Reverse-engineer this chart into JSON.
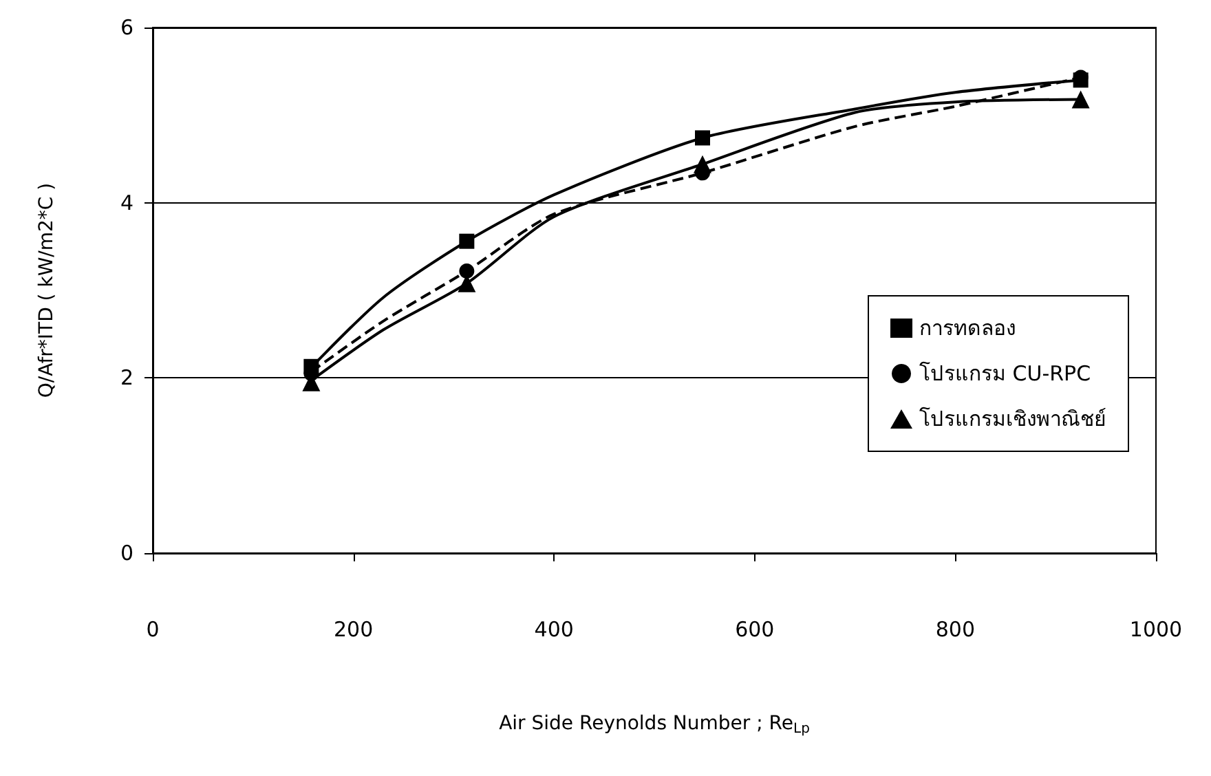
{
  "chart_data": {
    "type": "scatter",
    "xlabel": "Air Side Reynolds Number ; Re$_{Lp}$",
    "ylabel": "Q/Afr*ITD ( kW/m2*C )",
    "xlim": [
      0,
      1000
    ],
    "xticks": [
      0,
      200,
      400,
      600,
      800,
      1000
    ],
    "ylim": [
      0,
      6
    ],
    "yticks": [
      0,
      2,
      4,
      6
    ],
    "grid": "y",
    "legend": "right",
    "series": [
      {
        "name": "การทดลอง",
        "color": "#000000",
        "marker": "square",
        "x": [
          158,
          313,
          548,
          925
        ],
        "values": [
          2.13,
          3.56,
          4.74,
          5.4
        ]
      },
      {
        "name": "โปรแกรม CU-RPC",
        "color": "#000000",
        "marker": "circle",
        "x": [
          158,
          313,
          548,
          925
        ],
        "values": [
          2.05,
          3.22,
          4.34,
          5.43
        ]
      },
      {
        "name": "โปรแกรมเชิงพาณิชย์",
        "color": "#000000",
        "marker": "triangle",
        "x": [
          158,
          313,
          548,
          925
        ],
        "values": [
          1.95,
          3.08,
          4.44,
          5.18
        ]
      },
      {
        "type": "line",
        "color": "#000000",
        "marker": "none",
        "line_style": "solid",
        "x": [
          158,
          230,
          313,
          400,
          548,
          700,
          800,
          925
        ],
        "values": [
          2.12,
          2.92,
          3.56,
          4.09,
          4.74,
          5.07,
          5.26,
          5.4
        ]
      },
      {
        "type": "line",
        "color": "#000000",
        "marker": "none",
        "line_style": "dashed",
        "x": [
          158,
          230,
          313,
          400,
          548,
          700,
          800,
          925
        ],
        "values": [
          2.07,
          2.65,
          3.22,
          3.87,
          4.34,
          4.87,
          5.1,
          5.43
        ]
      },
      {
        "type": "line",
        "color": "#000000",
        "marker": "none",
        "line_style": "solid",
        "x": [
          158,
          230,
          313,
          400,
          548,
          700,
          800,
          925
        ],
        "values": [
          1.97,
          2.55,
          3.08,
          3.84,
          4.44,
          5.03,
          5.15,
          5.18
        ]
      }
    ]
  }
}
